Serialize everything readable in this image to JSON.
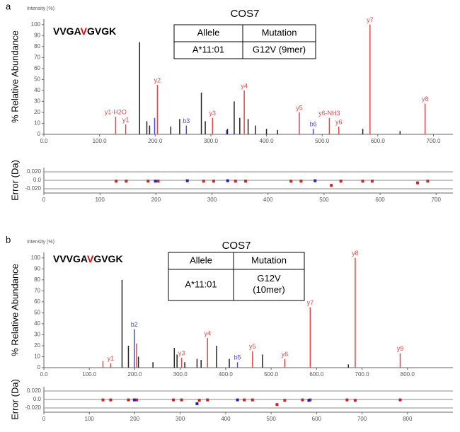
{
  "chart_data": [
    {
      "type": "spectrum",
      "panel": "a",
      "title": "COS7",
      "intensity_label": "Intensity (%)",
      "ylabel": "% Relative Abundance",
      "error_ylabel": "Error (Da)",
      "peptide": [
        {
          "text": "VVGA",
          "color": "#000000"
        },
        {
          "text": "V",
          "color": "#e00000"
        },
        {
          "text": "GVGK",
          "color": "#000000"
        }
      ],
      "table": {
        "header": [
          "Allele",
          "Mutation"
        ],
        "rows": [
          [
            "A*11:01",
            "G12V (9mer)"
          ]
        ]
      },
      "xlim": [
        0,
        735
      ],
      "ylim": [
        0,
        105
      ],
      "xticks": [
        {
          "value": 0,
          "label": "0.0"
        },
        {
          "value": 100,
          "label": "100.0"
        },
        {
          "value": 200,
          "label": "200.0"
        },
        {
          "value": 300,
          "label": "300.0"
        },
        {
          "value": 400,
          "label": "400.0"
        },
        {
          "value": 500,
          "label": "500.0"
        },
        {
          "value": 600,
          "label": "600.0"
        },
        {
          "value": 700,
          "label": "700.0"
        }
      ],
      "yticks": [
        0,
        10,
        20,
        30,
        40,
        50,
        60,
        70,
        80,
        90,
        100
      ],
      "peaks": [
        {
          "color": "#e04848",
          "x": [
            129,
            147,
            204,
            303,
            360,
            459,
            513,
            530,
            586,
            685
          ],
          "values": [
            16,
            9,
            45,
            15,
            40,
            20,
            15,
            7,
            100,
            28
          ],
          "labels": [
            "y1-H2O",
            "y1",
            "y2",
            "y3",
            "y4",
            "y5",
            "y6-NH3",
            "y6",
            "y7",
            "y8"
          ]
        },
        {
          "color": "#4a4ae0",
          "x": [
            199,
            256,
            328,
            484
          ],
          "values": [
            15,
            8,
            4,
            5
          ],
          "labels": [
            null,
            "b3",
            null,
            "b6"
          ]
        },
        {
          "color": "#222222",
          "x": [
            172,
            185,
            190,
            228,
            244,
            283,
            290,
            330,
            342,
            352,
            367,
            380,
            400,
            420,
            573,
            640
          ],
          "values": [
            84,
            12,
            8,
            7,
            14,
            38,
            12,
            5,
            30,
            15,
            14,
            8,
            5,
            4,
            5,
            3
          ],
          "labels": [
            null,
            null,
            null,
            null,
            null,
            null,
            null,
            null,
            null,
            null,
            null,
            null,
            null,
            null,
            null,
            null
          ]
        }
      ],
      "error_xlim": [
        0,
        730
      ],
      "error_ylim": [
        -0.03,
        0.03
      ],
      "error_xticks": [
        0,
        100,
        200,
        300,
        400,
        500,
        600,
        700
      ],
      "error_yticks": [
        {
          "value": 0.02,
          "label": "0.020"
        },
        {
          "value": 0,
          "label": "0.0"
        },
        {
          "value": -0.02,
          "label": "-0.020"
        }
      ],
      "errors": [
        {
          "color": "#d02020",
          "x": [
            129,
            147,
            186,
            204,
            285,
            303,
            342,
            360,
            441,
            459,
            513,
            530,
            569,
            586,
            667,
            685
          ],
          "values": [
            -0.002,
            -0.002,
            -0.002,
            -0.002,
            -0.002,
            -0.002,
            -0.002,
            -0.002,
            -0.002,
            -0.002,
            -0.012,
            -0.002,
            -0.002,
            -0.002,
            -0.006,
            -0.002
          ]
        },
        {
          "color": "#2020d0",
          "x": [
            199,
            256,
            328,
            484
          ],
          "values": [
            -0.002,
            -0.001,
            -0.001,
            -0.001
          ]
        }
      ]
    },
    {
      "type": "spectrum",
      "panel": "b",
      "title": "COS7",
      "intensity_label": "Intensity (%)",
      "ylabel": "% Relative Abundance",
      "error_ylabel": "Error (Da)",
      "peptide": [
        {
          "text": "VVVGA",
          "color": "#000000"
        },
        {
          "text": "V",
          "color": "#e00000"
        },
        {
          "text": "GVGK",
          "color": "#000000"
        }
      ],
      "table": {
        "header": [
          "Allele",
          "Mutation"
        ],
        "rows": [
          [
            "A*11:01",
            "G12V\n(10mer)"
          ]
        ]
      },
      "xlim": [
        0,
        900
      ],
      "ylim": [
        0,
        105
      ],
      "xticks": [
        {
          "value": 0,
          "label": "0.0"
        },
        {
          "value": 100,
          "label": "100.0"
        },
        {
          "value": 200,
          "label": "200.0"
        },
        {
          "value": 300,
          "label": "300.0"
        },
        {
          "value": 400,
          "label": "400.0"
        },
        {
          "value": 500,
          "label": "500.0"
        },
        {
          "value": 600,
          "label": "600.0"
        },
        {
          "value": 700,
          "label": "700.0"
        },
        {
          "value": 800,
          "label": "800.0"
        }
      ],
      "yticks": [
        0,
        10,
        20,
        30,
        40,
        50,
        60,
        70,
        80,
        90,
        100
      ],
      "peaks": [
        {
          "color": "#e04848",
          "x": [
            130,
            147,
            204,
            303,
            360,
            459,
            530,
            586,
            685,
            784
          ],
          "values": [
            6,
            4,
            22,
            9,
            27,
            15,
            8,
            55,
            100,
            13
          ],
          "labels": [
            null,
            "y1",
            null,
            "y3",
            "y4",
            "y5",
            "y6",
            "y7",
            "y8",
            "y9"
          ]
        },
        {
          "color": "#4a4ae0",
          "x": [
            199,
            426
          ],
          "values": [
            35,
            5
          ],
          "labels": [
            "b2",
            "b5"
          ]
        },
        {
          "color": "#222222",
          "x": [
            172,
            186,
            208,
            240,
            287,
            293,
            310,
            337,
            346,
            380,
            408,
            481,
            670
          ],
          "values": [
            80,
            20,
            10,
            5,
            18,
            12,
            5,
            8,
            7,
            20,
            8,
            12,
            3
          ],
          "labels": [
            null,
            null,
            null,
            null,
            null,
            null,
            null,
            null,
            null,
            null,
            null,
            null,
            null
          ]
        }
      ],
      "error_xlim": [
        0,
        900
      ],
      "error_ylim": [
        -0.03,
        0.03
      ],
      "error_xticks": [
        0,
        100,
        200,
        300,
        400,
        500,
        600,
        700,
        800
      ],
      "error_yticks": [
        {
          "value": 0.02,
          "label": "0.020"
        },
        {
          "value": 0,
          "label": "0.0"
        },
        {
          "value": -0.02,
          "label": "-0.020"
        }
      ],
      "errors": [
        {
          "color": "#d02020",
          "x": [
            130,
            147,
            186,
            204,
            285,
            303,
            342,
            360,
            441,
            459,
            513,
            530,
            569,
            586,
            667,
            685,
            784
          ],
          "values": [
            -0.001,
            -0.001,
            -0.001,
            -0.001,
            -0.001,
            -0.001,
            -0.002,
            -0.001,
            -0.001,
            -0.001,
            -0.012,
            -0.002,
            -0.001,
            -0.001,
            -0.001,
            -0.002,
            -0.001
          ]
        },
        {
          "color": "#2020d0",
          "x": [
            199,
            337,
            426,
            583
          ],
          "values": [
            -0.001,
            -0.01,
            -0.001,
            -0.002
          ]
        }
      ]
    }
  ]
}
